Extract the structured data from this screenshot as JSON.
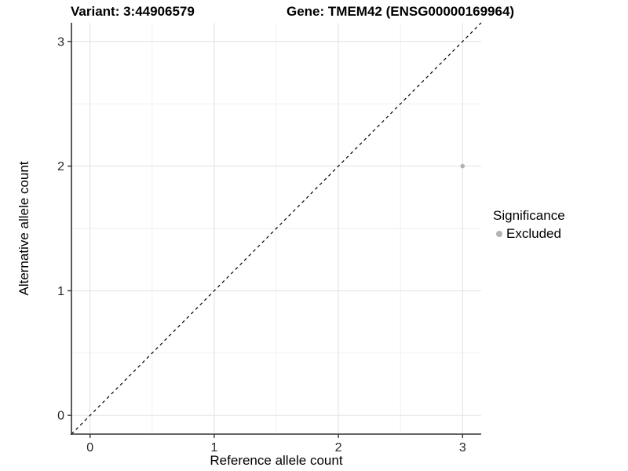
{
  "chart_data": {
    "type": "scatter",
    "titles": {
      "left": "Variant: 3:44906579",
      "right": "Gene: TMEM42 (ENSG00000169964)"
    },
    "xlabel": "Reference allele count",
    "ylabel": "Alternative allele count",
    "xlim": [
      -0.15,
      3.15
    ],
    "ylim": [
      -0.15,
      3.15
    ],
    "x_major_ticks": [
      0,
      1,
      2,
      3
    ],
    "y_major_ticks": [
      0,
      1,
      2,
      3
    ],
    "x_minor_gridlines": [
      0.5,
      1.5,
      2.5
    ],
    "y_minor_gridlines": [
      0.5,
      1.5,
      2.5
    ],
    "grid": "major+minor",
    "legend_position": "right",
    "identity_line": {
      "style": "dashed",
      "color": "#000000",
      "from": [
        -0.15,
        -0.15
      ],
      "to": [
        3.15,
        3.15
      ]
    },
    "series": [
      {
        "name": "Excluded",
        "color": "#b3b3b3",
        "points": [
          {
            "x": 3,
            "y": 2
          }
        ]
      }
    ],
    "legend": {
      "title": "Significance",
      "entries": [
        {
          "label": "Excluded",
          "color": "#b3b3b3"
        }
      ]
    },
    "colors": {
      "background": "#ffffff",
      "major_grid": "#e4e4e4",
      "minor_grid": "#efefef",
      "axis_line": "#333333",
      "tick_mark": "#333333",
      "tick_label": "#262626",
      "point": "#b3b3b3"
    }
  }
}
